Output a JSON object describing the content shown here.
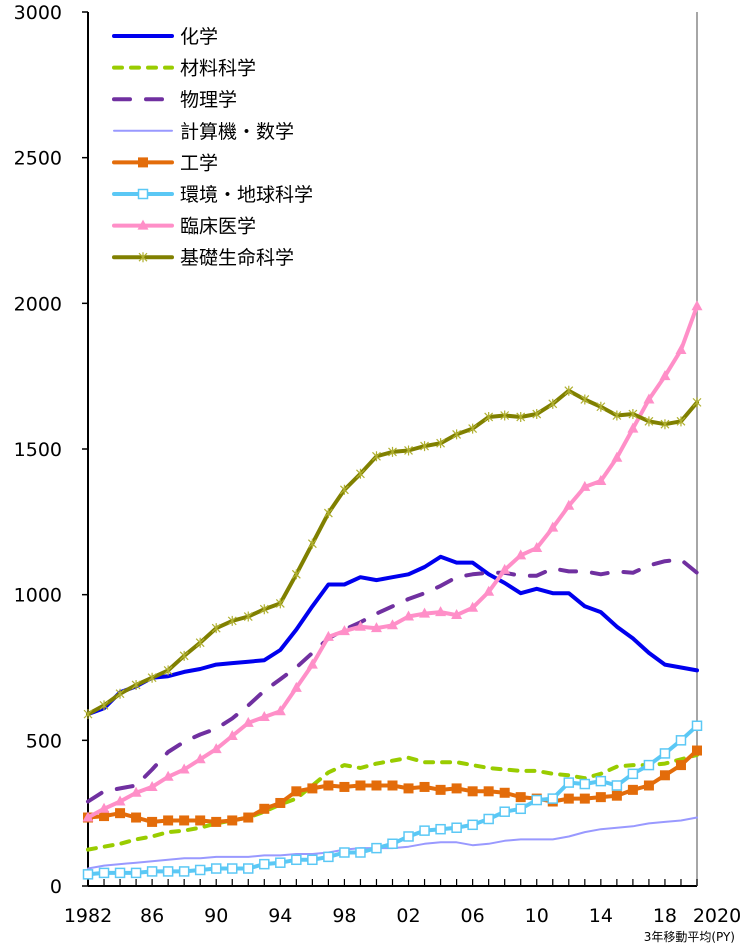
{
  "chart_data": {
    "type": "line",
    "title": "",
    "xlabel": "",
    "ylabel": "",
    "note": "3年移動平均(PY)",
    "xlim": [
      1982,
      2020
    ],
    "ylim": [
      0,
      3000
    ],
    "yticks": [
      "0",
      "500",
      "1000",
      "1500",
      "2000",
      "2500",
      "3000"
    ],
    "ytick_values": [
      0,
      500,
      1000,
      1500,
      2000,
      2500,
      3000
    ],
    "xticks": [
      "1982",
      "86",
      "90",
      "94",
      "98",
      "02",
      "06",
      "10",
      "14",
      "18",
      "2020"
    ],
    "xtick_values": [
      1982,
      1986,
      1990,
      1994,
      1998,
      2002,
      2006,
      2010,
      2014,
      2018,
      2020
    ],
    "legend_position": "top-left",
    "grid": false,
    "x": [
      1982,
      1983,
      1984,
      1985,
      1986,
      1987,
      1988,
      1989,
      1990,
      1991,
      1992,
      1993,
      1994,
      1995,
      1996,
      1997,
      1998,
      1999,
      2000,
      2001,
      2002,
      2003,
      2004,
      2005,
      2006,
      2007,
      2008,
      2009,
      2010,
      2011,
      2012,
      2013,
      2014,
      2015,
      2016,
      2017,
      2018,
      2019,
      2020
    ],
    "series": [
      {
        "name": "化学",
        "color": "#0000ee",
        "style": "solid",
        "marker": "none",
        "values": [
          590,
          610,
          665,
          685,
          715,
          720,
          735,
          745,
          760,
          765,
          770,
          775,
          810,
          880,
          960,
          1035,
          1035,
          1060,
          1050,
          1060,
          1070,
          1095,
          1130,
          1110,
          1110,
          1070,
          1040,
          1005,
          1020,
          1005,
          1005,
          960,
          940,
          890,
          850,
          800,
          760,
          750,
          740
        ]
      },
      {
        "name": "材料科学",
        "color": "#99cc00",
        "style": "short-dash",
        "marker": "none",
        "values": [
          125,
          135,
          145,
          160,
          170,
          185,
          190,
          200,
          215,
          225,
          235,
          255,
          280,
          300,
          345,
          390,
          415,
          405,
          420,
          430,
          440,
          425,
          425,
          425,
          415,
          405,
          400,
          395,
          395,
          385,
          380,
          370,
          385,
          410,
          415,
          415,
          420,
          435,
          450
        ]
      },
      {
        "name": "物理学",
        "color": "#7030a0",
        "style": "long-dash",
        "marker": "none",
        "values": [
          290,
          325,
          335,
          345,
          400,
          460,
          495,
          520,
          540,
          575,
          620,
          670,
          710,
          750,
          800,
          850,
          880,
          905,
          935,
          960,
          985,
          1005,
          1030,
          1060,
          1070,
          1075,
          1075,
          1065,
          1065,
          1090,
          1080,
          1080,
          1070,
          1080,
          1075,
          1100,
          1115,
          1120,
          1075
        ]
      },
      {
        "name": "計算機・数学",
        "color": "#9999ff",
        "style": "thin",
        "marker": "none",
        "values": [
          60,
          70,
          75,
          80,
          85,
          90,
          95,
          95,
          100,
          100,
          100,
          105,
          105,
          110,
          110,
          115,
          125,
          130,
          130,
          130,
          135,
          145,
          150,
          150,
          140,
          145,
          155,
          160,
          160,
          160,
          170,
          185,
          195,
          200,
          205,
          215,
          220,
          225,
          235
        ]
      },
      {
        "name": "工学",
        "color": "#e36c0a",
        "style": "solid",
        "marker": "filled-square",
        "values": [
          235,
          240,
          250,
          235,
          220,
          225,
          225,
          225,
          220,
          225,
          235,
          265,
          285,
          325,
          335,
          345,
          340,
          345,
          345,
          345,
          335,
          340,
          330,
          335,
          325,
          325,
          320,
          305,
          300,
          290,
          300,
          300,
          305,
          310,
          330,
          345,
          380,
          415,
          465
        ]
      },
      {
        "name": "環境・地球科学",
        "color": "#5bc8f5",
        "style": "solid",
        "marker": "hollow-square",
        "values": [
          40,
          45,
          45,
          45,
          50,
          50,
          50,
          55,
          60,
          60,
          60,
          75,
          80,
          90,
          90,
          100,
          115,
          115,
          130,
          145,
          170,
          190,
          195,
          200,
          210,
          230,
          255,
          265,
          295,
          300,
          355,
          350,
          360,
          345,
          385,
          415,
          455,
          500,
          550
        ]
      },
      {
        "name": "臨床医学",
        "color": "#ff8fc8",
        "style": "solid",
        "marker": "triangle",
        "values": [
          235,
          265,
          290,
          320,
          340,
          375,
          400,
          435,
          470,
          515,
          560,
          580,
          600,
          680,
          760,
          855,
          875,
          890,
          885,
          895,
          925,
          935,
          940,
          930,
          955,
          1010,
          1085,
          1135,
          1160,
          1230,
          1305,
          1370,
          1390,
          1470,
          1570,
          1670,
          1750,
          1840,
          1990
        ]
      },
      {
        "name": "基礎生命科学",
        "color": "#808000",
        "style": "solid",
        "marker": "star",
        "values": [
          590,
          620,
          660,
          690,
          715,
          740,
          790,
          835,
          885,
          910,
          925,
          950,
          970,
          1070,
          1175,
          1280,
          1360,
          1415,
          1475,
          1490,
          1495,
          1510,
          1520,
          1550,
          1570,
          1610,
          1615,
          1610,
          1620,
          1655,
          1700,
          1670,
          1645,
          1615,
          1620,
          1595,
          1585,
          1595,
          1660
        ]
      }
    ]
  }
}
